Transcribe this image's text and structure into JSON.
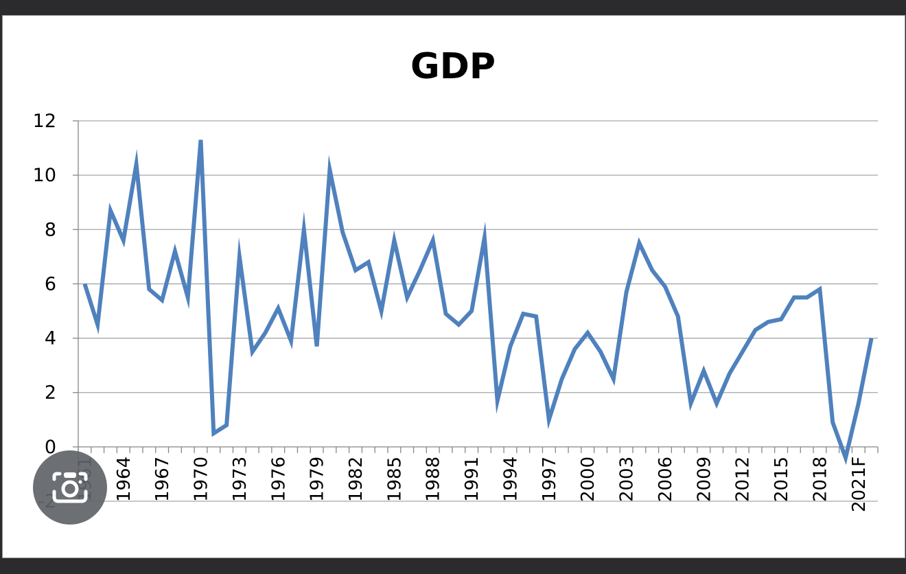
{
  "chart_data": {
    "type": "line",
    "title": "GDP",
    "xlabel": "",
    "ylabel": "",
    "ylim": [
      -2,
      12
    ],
    "yticks": [
      "-2",
      "0",
      "2",
      "4",
      "6",
      "8",
      "10",
      "12"
    ],
    "ytick_values": [
      -2,
      0,
      2,
      4,
      6,
      8,
      10,
      12
    ],
    "grid": true,
    "legend": "none",
    "categories": [
      "1961",
      "1962",
      "1963",
      "1964",
      "1965",
      "1966",
      "1967",
      "1968",
      "1969",
      "1970",
      "1971",
      "1972",
      "1973",
      "1974",
      "1975",
      "1976",
      "1977",
      "1978",
      "1979",
      "1980",
      "1981",
      "1982",
      "1983",
      "1984",
      "1985",
      "1986",
      "1987",
      "1988",
      "1989",
      "1990",
      "1991",
      "1992",
      "1993",
      "1994",
      "1995",
      "1996",
      "1997",
      "1998",
      "1999",
      "2000",
      "2001",
      "2002",
      "2003",
      "2004",
      "2005",
      "2006",
      "2007",
      "2008",
      "2009",
      "2010",
      "2011",
      "2012",
      "2013",
      "2014",
      "2015",
      "2016",
      "2017",
      "2018",
      "2019",
      "2020",
      "2021F",
      "2022F"
    ],
    "tick_labels": [
      "1961",
      "1964",
      "1967",
      "1970",
      "1973",
      "1976",
      "1979",
      "1982",
      "1985",
      "1988",
      "1991",
      "1994",
      "1997",
      "2000",
      "2003",
      "2006",
      "2009",
      "2012",
      "2015",
      "2018",
      "2021F"
    ],
    "series": [
      {
        "values": [
          6.0,
          4.5,
          8.7,
          7.6,
          10.4,
          5.8,
          5.4,
          7.2,
          5.5,
          11.3,
          0.5,
          0.8,
          7.0,
          3.5,
          4.2,
          5.1,
          3.9,
          8.0,
          3.7,
          10.2,
          7.9,
          6.5,
          6.8,
          5.0,
          7.6,
          5.5,
          6.5,
          7.6,
          4.9,
          4.5,
          5.0,
          7.7,
          1.7,
          3.7,
          4.9,
          4.8,
          1.0,
          2.5,
          3.6,
          4.2,
          3.5,
          2.5,
          5.7,
          7.5,
          6.5,
          5.9,
          4.8,
          1.6,
          2.8,
          1.6,
          2.7,
          3.5,
          4.3,
          4.6,
          4.7,
          5.5,
          5.5,
          5.8,
          0.9,
          -0.4,
          1.6,
          4.0
        ],
        "color": "#4f81bd"
      }
    ]
  },
  "overlay": {
    "icon": "camera-icon"
  }
}
